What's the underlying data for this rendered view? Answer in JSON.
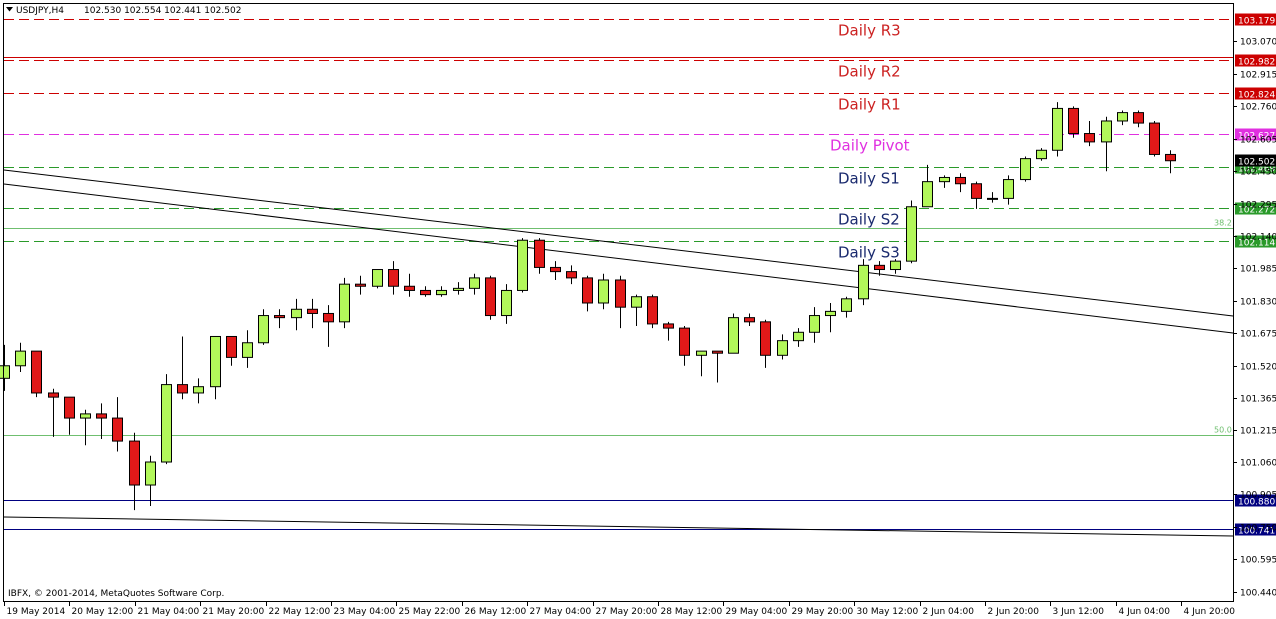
{
  "header": {
    "symbol": "USDJPY,H4",
    "ohlc": "102.530 102.554 102.441 102.502"
  },
  "copyright": "IBFX, © 2001-2014, MetaQuotes Software Corp.",
  "chart_data": {
    "type": "candlestick",
    "ylim": [
      100.41,
      103.23
    ],
    "y_ticks": [
      "103.070",
      "102.915",
      "102.760",
      "102.605",
      "102.450",
      "102.295",
      "102.140",
      "101.985",
      "101.830",
      "101.675",
      "101.520",
      "101.365",
      "101.215",
      "101.060",
      "100.905",
      "100.750",
      "100.595",
      "100.440"
    ],
    "x_labels": [
      "19 May 2014",
      "20 May 12:00",
      "21 May 04:00",
      "21 May 20:00",
      "22 May 12:00",
      "23 May 04:00",
      "25 May 22:00",
      "26 May 12:00",
      "27 May 04:00",
      "27 May 20:00",
      "28 May 12:00",
      "29 May 04:00",
      "29 May 20:00",
      "30 May 12:00",
      "2 Jun 04:00",
      "2 Jun 20:00",
      "3 Jun 12:00",
      "4 Jun 04:00",
      "4 Jun 20:00"
    ],
    "current_price": "102.502",
    "candles": [
      {
        "o": 101.46,
        "h": 101.62,
        "l": 101.4,
        "c": 101.52
      },
      {
        "o": 101.52,
        "h": 101.63,
        "l": 101.49,
        "c": 101.59
      },
      {
        "o": 101.59,
        "h": 101.59,
        "l": 101.37,
        "c": 101.39
      },
      {
        "o": 101.39,
        "h": 101.41,
        "l": 101.18,
        "c": 101.37
      },
      {
        "o": 101.37,
        "h": 101.37,
        "l": 101.19,
        "c": 101.27
      },
      {
        "o": 101.27,
        "h": 101.31,
        "l": 101.14,
        "c": 101.29
      },
      {
        "o": 101.29,
        "h": 101.34,
        "l": 101.17,
        "c": 101.27
      },
      {
        "o": 101.27,
        "h": 101.37,
        "l": 101.11,
        "c": 101.16
      },
      {
        "o": 101.16,
        "h": 101.2,
        "l": 100.83,
        "c": 100.95
      },
      {
        "o": 100.95,
        "h": 101.09,
        "l": 100.85,
        "c": 101.06
      },
      {
        "o": 101.06,
        "h": 101.48,
        "l": 101.05,
        "c": 101.43
      },
      {
        "o": 101.43,
        "h": 101.66,
        "l": 101.36,
        "c": 101.39
      },
      {
        "o": 101.39,
        "h": 101.46,
        "l": 101.34,
        "c": 101.42
      },
      {
        "o": 101.42,
        "h": 101.66,
        "l": 101.36,
        "c": 101.66
      },
      {
        "o": 101.66,
        "h": 101.66,
        "l": 101.52,
        "c": 101.56
      },
      {
        "o": 101.56,
        "h": 101.69,
        "l": 101.51,
        "c": 101.63
      },
      {
        "o": 101.63,
        "h": 101.79,
        "l": 101.62,
        "c": 101.76
      },
      {
        "o": 101.76,
        "h": 101.79,
        "l": 101.7,
        "c": 101.75
      },
      {
        "o": 101.75,
        "h": 101.84,
        "l": 101.69,
        "c": 101.79
      },
      {
        "o": 101.79,
        "h": 101.84,
        "l": 101.7,
        "c": 101.77
      },
      {
        "o": 101.77,
        "h": 101.81,
        "l": 101.61,
        "c": 101.73
      },
      {
        "o": 101.73,
        "h": 101.94,
        "l": 101.7,
        "c": 101.91
      },
      {
        "o": 101.91,
        "h": 101.95,
        "l": 101.86,
        "c": 101.9
      },
      {
        "o": 101.9,
        "h": 101.98,
        "l": 101.89,
        "c": 101.98
      },
      {
        "o": 101.98,
        "h": 102.02,
        "l": 101.86,
        "c": 101.9
      },
      {
        "o": 101.9,
        "h": 101.96,
        "l": 101.85,
        "c": 101.88
      },
      {
        "o": 101.88,
        "h": 101.9,
        "l": 101.85,
        "c": 101.86
      },
      {
        "o": 101.86,
        "h": 101.9,
        "l": 101.85,
        "c": 101.88
      },
      {
        "o": 101.88,
        "h": 101.92,
        "l": 101.86,
        "c": 101.89
      },
      {
        "o": 101.89,
        "h": 101.96,
        "l": 101.86,
        "c": 101.94
      },
      {
        "o": 101.94,
        "h": 101.95,
        "l": 101.74,
        "c": 101.76
      },
      {
        "o": 101.76,
        "h": 101.91,
        "l": 101.72,
        "c": 101.88
      },
      {
        "o": 101.88,
        "h": 102.13,
        "l": 101.87,
        "c": 102.12
      },
      {
        "o": 102.12,
        "h": 102.13,
        "l": 101.96,
        "c": 101.99
      },
      {
        "o": 101.99,
        "h": 102.02,
        "l": 101.93,
        "c": 101.97
      },
      {
        "o": 101.97,
        "h": 102.0,
        "l": 101.91,
        "c": 101.94
      },
      {
        "o": 101.94,
        "h": 101.95,
        "l": 101.78,
        "c": 101.82
      },
      {
        "o": 101.82,
        "h": 101.96,
        "l": 101.79,
        "c": 101.93
      },
      {
        "o": 101.93,
        "h": 101.95,
        "l": 101.7,
        "c": 101.8
      },
      {
        "o": 101.8,
        "h": 101.86,
        "l": 101.71,
        "c": 101.85
      },
      {
        "o": 101.85,
        "h": 101.86,
        "l": 101.7,
        "c": 101.72
      },
      {
        "o": 101.72,
        "h": 101.73,
        "l": 101.64,
        "c": 101.7
      },
      {
        "o": 101.7,
        "h": 101.71,
        "l": 101.52,
        "c": 101.57
      },
      {
        "o": 101.57,
        "h": 101.59,
        "l": 101.47,
        "c": 101.59
      },
      {
        "o": 101.59,
        "h": 101.59,
        "l": 101.44,
        "c": 101.58
      },
      {
        "o": 101.58,
        "h": 101.77,
        "l": 101.58,
        "c": 101.75
      },
      {
        "o": 101.75,
        "h": 101.77,
        "l": 101.71,
        "c": 101.73
      },
      {
        "o": 101.73,
        "h": 101.74,
        "l": 101.51,
        "c": 101.57
      },
      {
        "o": 101.57,
        "h": 101.67,
        "l": 101.55,
        "c": 101.64
      },
      {
        "o": 101.64,
        "h": 101.7,
        "l": 101.61,
        "c": 101.68
      },
      {
        "o": 101.68,
        "h": 101.8,
        "l": 101.63,
        "c": 101.76
      },
      {
        "o": 101.76,
        "h": 101.82,
        "l": 101.68,
        "c": 101.78
      },
      {
        "o": 101.78,
        "h": 101.85,
        "l": 101.75,
        "c": 101.84
      },
      {
        "o": 101.84,
        "h": 102.03,
        "l": 101.81,
        "c": 102.0
      },
      {
        "o": 102.0,
        "h": 102.02,
        "l": 101.95,
        "c": 101.98
      },
      {
        "o": 101.98,
        "h": 102.03,
        "l": 101.96,
        "c": 102.02
      },
      {
        "o": 102.02,
        "h": 102.31,
        "l": 102.01,
        "c": 102.28
      },
      {
        "o": 102.28,
        "h": 102.48,
        "l": 102.28,
        "c": 102.4
      },
      {
        "o": 102.4,
        "h": 102.43,
        "l": 102.37,
        "c": 102.42
      },
      {
        "o": 102.42,
        "h": 102.44,
        "l": 102.35,
        "c": 102.39
      },
      {
        "o": 102.39,
        "h": 102.4,
        "l": 102.27,
        "c": 102.32
      },
      {
        "o": 102.32,
        "h": 102.35,
        "l": 102.3,
        "c": 102.32
      },
      {
        "o": 102.32,
        "h": 102.43,
        "l": 102.29,
        "c": 102.41
      },
      {
        "o": 102.41,
        "h": 102.52,
        "l": 102.4,
        "c": 102.51
      },
      {
        "o": 102.51,
        "h": 102.56,
        "l": 102.5,
        "c": 102.55
      },
      {
        "o": 102.55,
        "h": 102.78,
        "l": 102.52,
        "c": 102.75
      },
      {
        "o": 102.75,
        "h": 102.76,
        "l": 102.61,
        "c": 102.63
      },
      {
        "o": 102.63,
        "h": 102.69,
        "l": 102.57,
        "c": 102.59
      },
      {
        "o": 102.59,
        "h": 102.71,
        "l": 102.45,
        "c": 102.69
      },
      {
        "o": 102.69,
        "h": 102.74,
        "l": 102.67,
        "c": 102.73
      },
      {
        "o": 102.73,
        "h": 102.74,
        "l": 102.66,
        "c": 102.68
      },
      {
        "o": 102.68,
        "h": 102.69,
        "l": 102.52,
        "c": 102.53
      },
      {
        "o": 102.53,
        "h": 102.55,
        "l": 102.44,
        "c": 102.5
      }
    ],
    "levels": [
      {
        "name": "Daily R3",
        "value": 103.179,
        "tag": "103.179",
        "color": "#cc0000",
        "style": "dash",
        "text_color": "#cc2222"
      },
      {
        "name": "Daily R2",
        "value": 102.982,
        "tag": "102.982",
        "color": "#cc0000",
        "style": "dash-double",
        "text_color": "#cc2222"
      },
      {
        "name": "Daily R1",
        "value": 102.824,
        "tag": "102.824",
        "color": "#cc0000",
        "style": "dash",
        "text_color": "#cc2222"
      },
      {
        "name": "Daily Pivot",
        "value": 102.627,
        "tag": "102.627",
        "color": "#e030e0",
        "style": "dash",
        "text_color": "#e030e0"
      },
      {
        "name": "Daily S1",
        "value": 102.469,
        "tag": "102.469",
        "color": "#2a9a2a",
        "style": "dash",
        "text_color": "#1a2a6e"
      },
      {
        "name": "Daily S2",
        "value": 102.272,
        "tag": "102.272",
        "color": "#2a9a2a",
        "style": "dash",
        "text_color": "#1a2a6e"
      },
      {
        "name": "Daily S3",
        "value": 102.114,
        "tag": "102.114",
        "color": "#2a9a2a",
        "style": "dash",
        "text_color": "#1a2a6e"
      }
    ],
    "fib_levels": [
      {
        "label": "38.2",
        "value": 102.18
      },
      {
        "label": "50.0",
        "value": 101.19
      }
    ],
    "support_lines": [
      {
        "value": 100.88,
        "tag": "100.880"
      },
      {
        "value": 100.741,
        "tag": "100.741"
      }
    ],
    "colors": {
      "bull": "#b2f75a",
      "bear": "#e11919",
      "wick": "#000000",
      "fib": "#6fbf6f",
      "hline": "#000080"
    }
  }
}
